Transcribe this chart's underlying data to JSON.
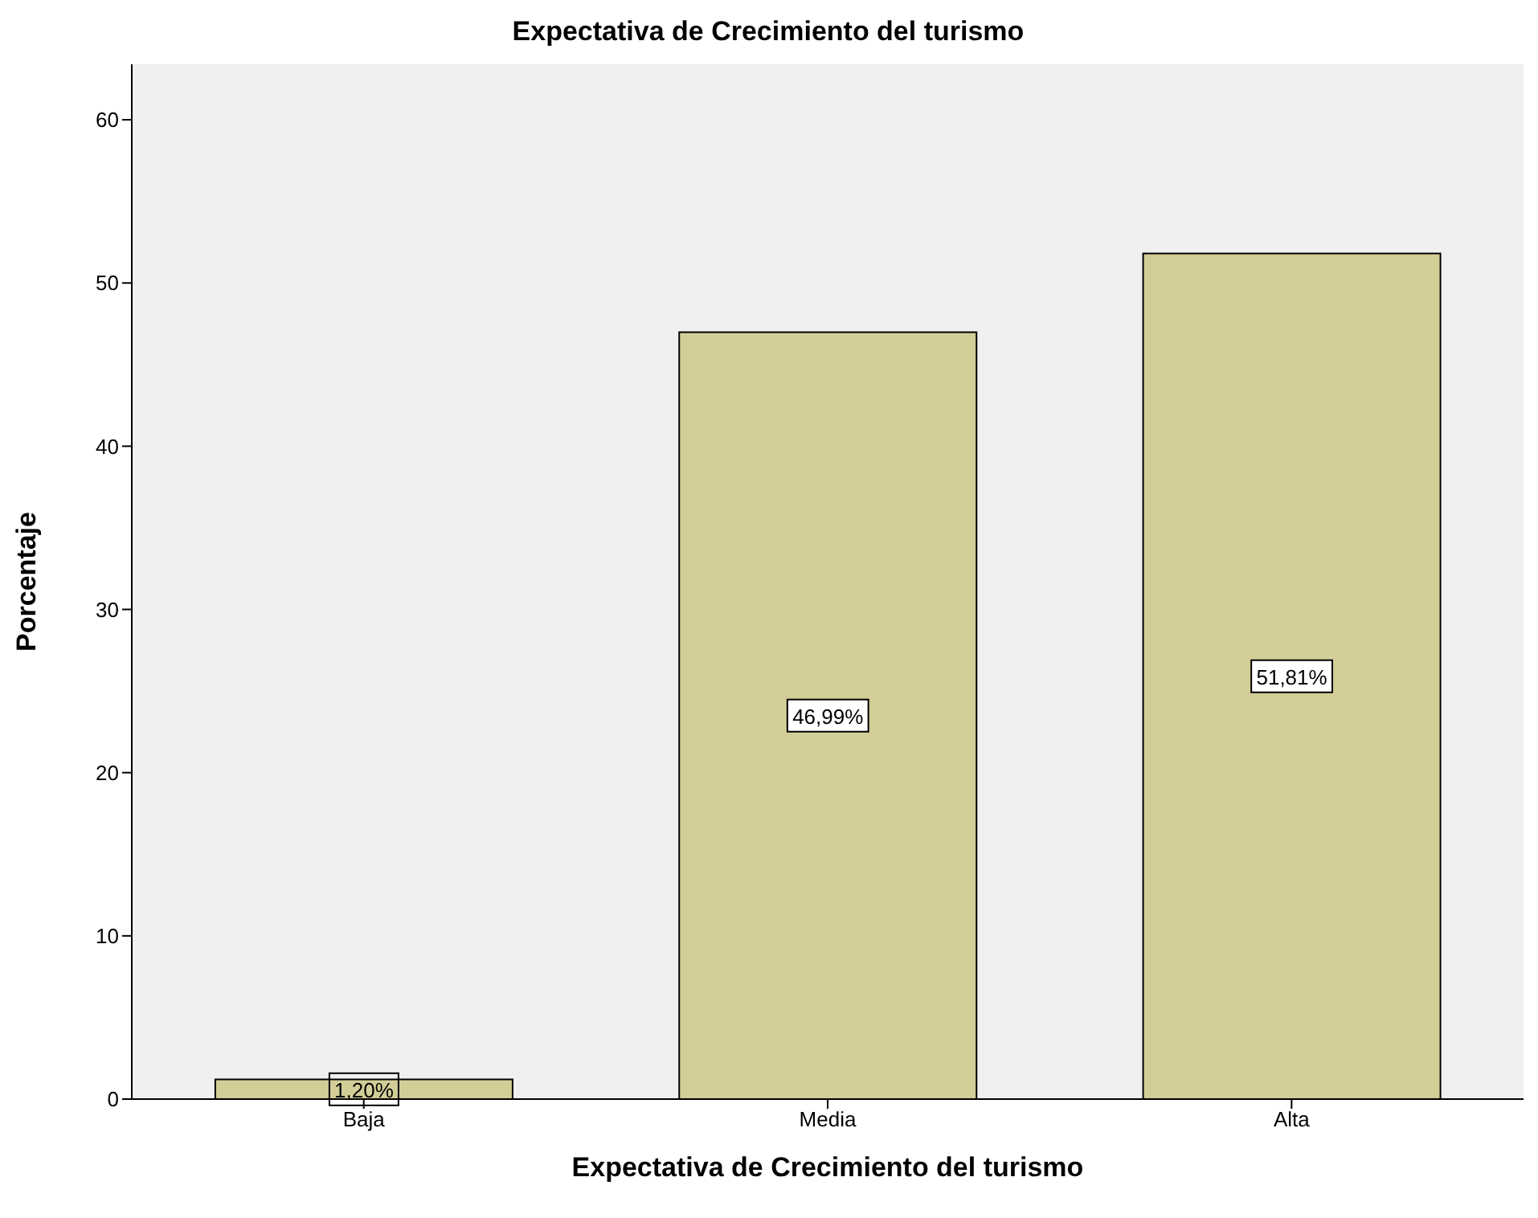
{
  "chart_data": {
    "type": "bar",
    "title": "Expectativa de Crecimiento del turismo",
    "xlabel": "Expectativa de Crecimiento del turismo",
    "ylabel": "Porcentaje",
    "categories": [
      "Baja",
      "Media",
      "Alta"
    ],
    "values": [
      1.2,
      46.99,
      51.81
    ],
    "value_labels": [
      "1,20%",
      "46,99%",
      "51,81%"
    ],
    "color": "#d3ce97",
    "ylim": [
      0,
      63.4
    ],
    "yticks": [
      0,
      10,
      20,
      30,
      40,
      50,
      60
    ]
  }
}
